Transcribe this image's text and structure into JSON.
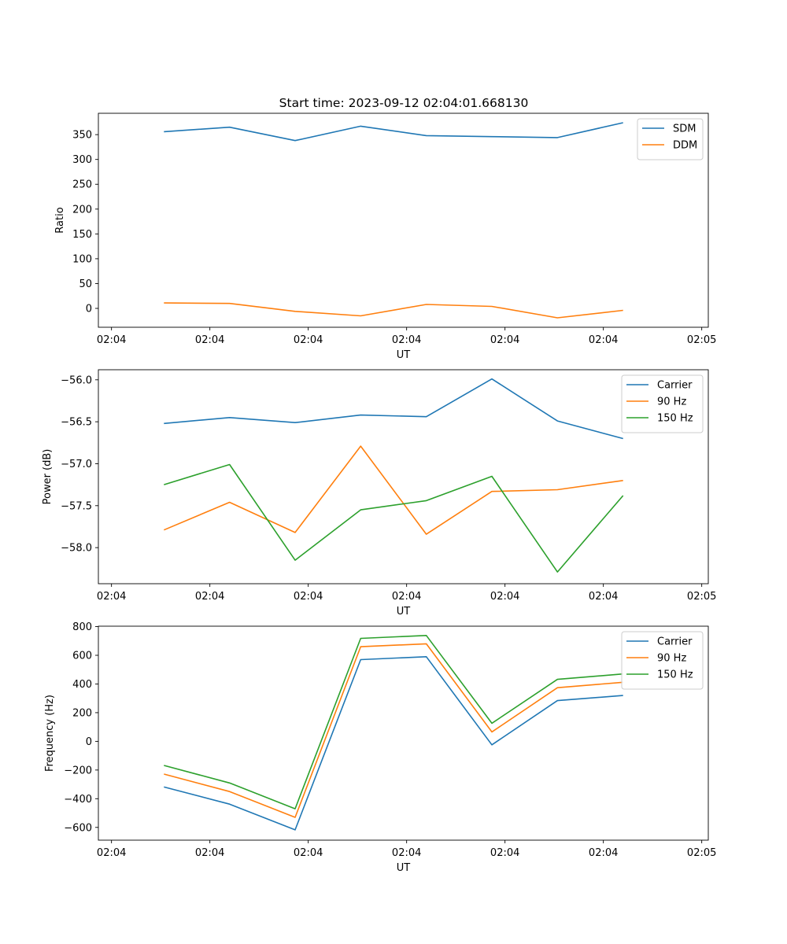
{
  "figure": {
    "title": "Start time: 2023-09-12 02:04:01.668130"
  },
  "colors": {
    "blue": "#1f77b4",
    "orange": "#ff7f0e",
    "green": "#2ca02c"
  },
  "chart_data": [
    {
      "type": "line",
      "title": "Start time: 2023-09-12 02:04:01.668130",
      "xlabel": "UT",
      "ylabel": "Ratio",
      "xlim": [
        0,
        9.3
      ],
      "ylim": [
        -38,
        393
      ],
      "x": [
        1,
        2,
        3,
        4,
        5,
        6,
        7,
        8
      ],
      "xticks": [
        0.2,
        1.7,
        3.2,
        4.7,
        6.2,
        7.7,
        9.2
      ],
      "xticklabels": [
        "02:04",
        "02:04",
        "02:04",
        "02:04",
        "02:04",
        "02:04",
        "02:05"
      ],
      "yticks": [
        0,
        50,
        100,
        150,
        200,
        250,
        300,
        350
      ],
      "yticklabels": [
        "0",
        "50",
        "100",
        "150",
        "200",
        "250",
        "300",
        "350"
      ],
      "legend": "top-right",
      "series": [
        {
          "name": "SDM",
          "color": "#1f77b4",
          "values": [
            356,
            365,
            338,
            367,
            348,
            346,
            344,
            374
          ]
        },
        {
          "name": "DDM",
          "color": "#ff7f0e",
          "values": [
            11,
            10,
            -6,
            -15,
            8,
            4,
            -19,
            -4
          ]
        }
      ]
    },
    {
      "type": "line",
      "title": "",
      "xlabel": "UT",
      "ylabel": "Power (dB)",
      "xlim": [
        0,
        9.3
      ],
      "ylim": [
        -58.43,
        -55.88
      ],
      "x": [
        1,
        2,
        3,
        4,
        5,
        6,
        7,
        8
      ],
      "xticks": [
        0.2,
        1.7,
        3.2,
        4.7,
        6.2,
        7.7,
        9.2
      ],
      "xticklabels": [
        "02:04",
        "02:04",
        "02:04",
        "02:04",
        "02:04",
        "02:04",
        "02:05"
      ],
      "yticks": [
        -58.0,
        -57.5,
        -57.0,
        -56.5,
        -56.0
      ],
      "yticklabels": [
        "−58.0",
        "−57.5",
        "−57.0",
        "−56.5",
        "−56.0"
      ],
      "legend": "top-right",
      "series": [
        {
          "name": "Carrier",
          "color": "#1f77b4",
          "values": [
            -56.52,
            -56.45,
            -56.51,
            -56.42,
            -56.44,
            -55.99,
            -56.49,
            -56.7
          ]
        },
        {
          "name": "90 Hz",
          "color": "#ff7f0e",
          "values": [
            -57.79,
            -57.46,
            -57.82,
            -56.79,
            -57.84,
            -57.33,
            -57.31,
            -57.2
          ]
        },
        {
          "name": "150 Hz",
          "color": "#2ca02c",
          "values": [
            -57.25,
            -57.01,
            -58.15,
            -57.55,
            -57.44,
            -57.15,
            -58.29,
            -57.38
          ]
        }
      ]
    },
    {
      "type": "line",
      "title": "",
      "xlabel": "UT",
      "ylabel": "Frequency (Hz)",
      "xlim": [
        0,
        9.3
      ],
      "ylim": [
        -689,
        803
      ],
      "x": [
        1,
        2,
        3,
        4,
        5,
        6,
        7,
        8
      ],
      "xticks": [
        0.2,
        1.7,
        3.2,
        4.7,
        6.2,
        7.7,
        9.2
      ],
      "xticklabels": [
        "02:04",
        "02:04",
        "02:04",
        "02:04",
        "02:04",
        "02:04",
        "02:05"
      ],
      "yticks": [
        -600,
        -400,
        -200,
        0,
        200,
        400,
        600,
        800
      ],
      "yticklabels": [
        "−600",
        "−400",
        "−200",
        "0",
        "200",
        "400",
        "600",
        "800"
      ],
      "legend": "top-right",
      "series": [
        {
          "name": "Carrier",
          "color": "#1f77b4",
          "values": [
            -318,
            -438,
            -617,
            570,
            590,
            -24,
            284,
            320
          ]
        },
        {
          "name": "90 Hz",
          "color": "#ff7f0e",
          "values": [
            -228,
            -350,
            -530,
            660,
            680,
            66,
            374,
            412
          ]
        },
        {
          "name": "150 Hz",
          "color": "#2ca02c",
          "values": [
            -168,
            -290,
            -470,
            718,
            738,
            126,
            432,
            470
          ]
        }
      ]
    }
  ]
}
